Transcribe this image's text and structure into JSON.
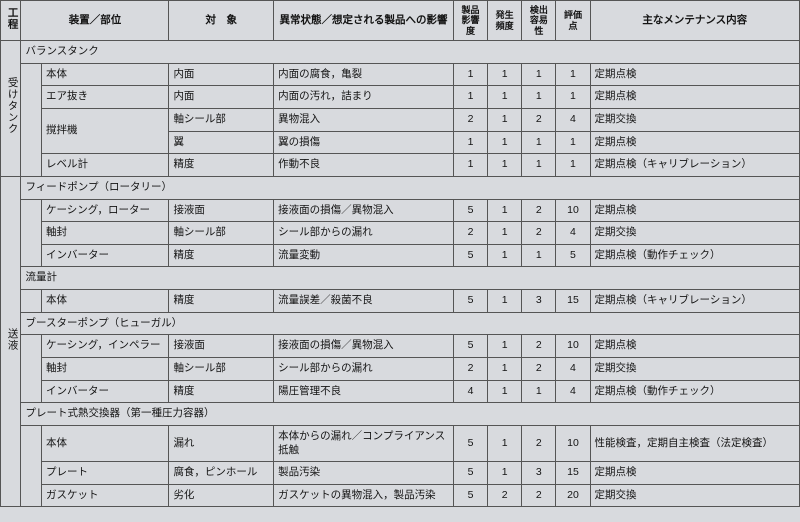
{
  "headers": {
    "process": "工程",
    "device": "装置／部位",
    "target": "対　象",
    "abnormal": "異常状態／想定される製品への影響",
    "impact": "製品\n影響度",
    "freq": "発生\n頻度",
    "detect": "検出\n容易性",
    "score": "評価点",
    "maint": "主なメンテナンス内容"
  },
  "proc": {
    "p1": "受けタンク",
    "p2": "送液"
  },
  "sec": {
    "s1": "バランスタンク",
    "s2": "フィードポンプ（ロータリー）",
    "s3": "流量計",
    "s4": "ブースターポンプ（ヒューガル）",
    "s5": "プレート式熱交換器（第一種圧力容器）"
  },
  "r": {
    "r1": {
      "dev": "本体",
      "tgt": "内面",
      "abn": "内面の腐食，亀裂",
      "a": 1,
      "b": 1,
      "c": 1,
      "d": 1,
      "m": "定期点検"
    },
    "r2": {
      "dev": "エア抜き",
      "tgt": "内面",
      "abn": "内面の汚れ，詰まり",
      "a": 1,
      "b": 1,
      "c": 1,
      "d": 1,
      "m": "定期点検"
    },
    "r3": {
      "dev": "撹拌機",
      "tgt": "軸シール部",
      "abn": "異物混入",
      "a": 2,
      "b": 1,
      "c": 2,
      "d": 4,
      "m": "定期交換"
    },
    "r4": {
      "dev": "",
      "tgt": "翼",
      "abn": "翼の損傷",
      "a": 1,
      "b": 1,
      "c": 1,
      "d": 1,
      "m": "定期点検"
    },
    "r5": {
      "dev": "レベル計",
      "tgt": "精度",
      "abn": "作動不良",
      "a": 1,
      "b": 1,
      "c": 1,
      "d": 1,
      "m": "定期点検（キャリブレーション）"
    },
    "r6": {
      "dev": "ケーシング，ローター",
      "tgt": "接液面",
      "abn": "接液面の損傷／異物混入",
      "a": 5,
      "b": 1,
      "c": 2,
      "d": 10,
      "m": "定期点検"
    },
    "r7": {
      "dev": "軸封",
      "tgt": "軸シール部",
      "abn": "シール部からの漏れ",
      "a": 2,
      "b": 1,
      "c": 2,
      "d": 4,
      "m": "定期交換"
    },
    "r8": {
      "dev": "インバーター",
      "tgt": "精度",
      "abn": "流量変動",
      "a": 5,
      "b": 1,
      "c": 1,
      "d": 5,
      "m": "定期点検（動作チェック）"
    },
    "r9": {
      "dev": "本体",
      "tgt": "精度",
      "abn": "流量誤差／殺菌不良",
      "a": 5,
      "b": 1,
      "c": 3,
      "d": 15,
      "m": "定期点検（キャリブレーション）"
    },
    "r10": {
      "dev": "ケーシング，インペラー",
      "tgt": "接液面",
      "abn": "接液面の損傷／異物混入",
      "a": 5,
      "b": 1,
      "c": 2,
      "d": 10,
      "m": "定期点検"
    },
    "r11": {
      "dev": "軸封",
      "tgt": "軸シール部",
      "abn": "シール部からの漏れ",
      "a": 2,
      "b": 1,
      "c": 2,
      "d": 4,
      "m": "定期交換"
    },
    "r12": {
      "dev": "インバーター",
      "tgt": "精度",
      "abn": "陽圧管理不良",
      "a": 4,
      "b": 1,
      "c": 1,
      "d": 4,
      "m": "定期点検（動作チェック）"
    },
    "r13": {
      "dev": "本体",
      "tgt": "漏れ",
      "abn": "本体からの漏れ／コンプライアンス抵触",
      "a": 5,
      "b": 1,
      "c": 2,
      "d": 10,
      "m": "性能検査，定期自主検査（法定検査）"
    },
    "r14": {
      "dev": "プレート",
      "tgt": "腐食，ピンホール",
      "abn": "製品汚染",
      "a": 5,
      "b": 1,
      "c": 3,
      "d": 15,
      "m": "定期点検"
    },
    "r15": {
      "dev": "ガスケット",
      "tgt": "劣化",
      "abn": "ガスケットの異物混入，製品汚染",
      "a": 5,
      "b": 2,
      "c": 2,
      "d": 20,
      "m": "定期交換"
    }
  }
}
